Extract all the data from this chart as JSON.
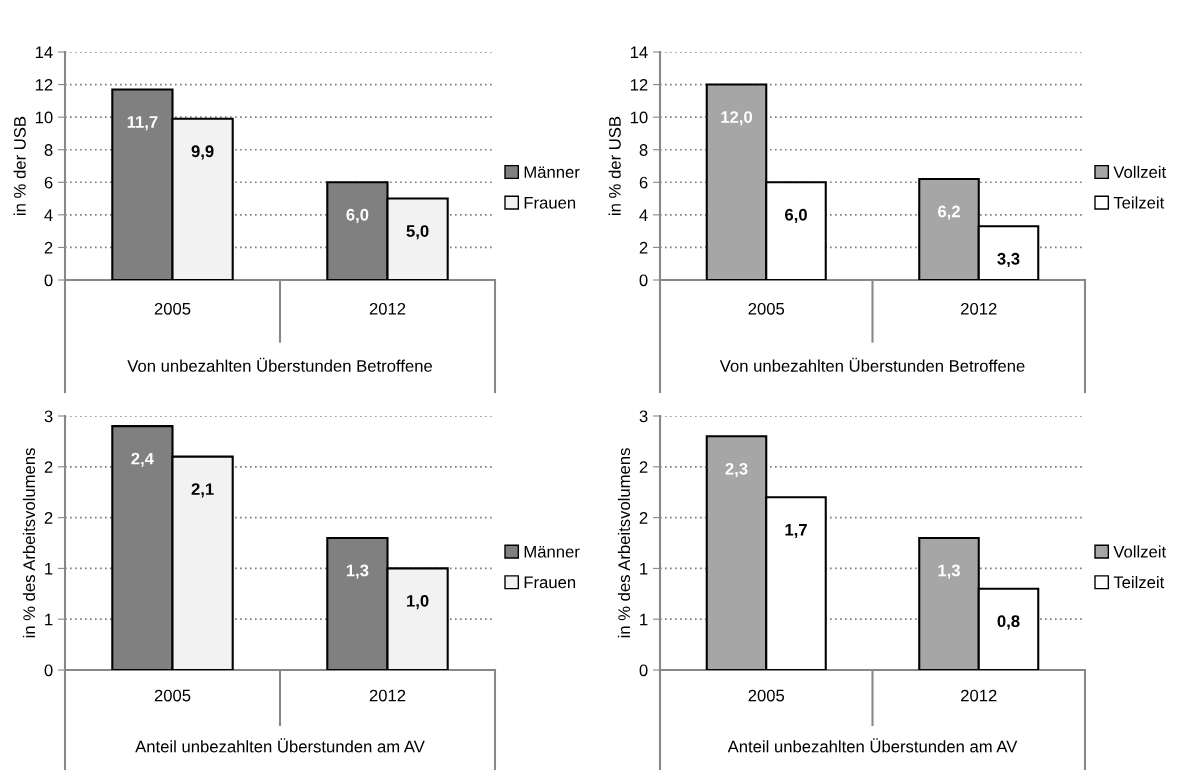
{
  "chart_data": [
    {
      "type": "bar",
      "categories": [
        "2005",
        "2012"
      ],
      "xlabel": "Von unbezahlten Überstunden Betroffene",
      "ylabel": "in % der USB",
      "ylim": [
        0,
        14
      ],
      "yticks": [
        0,
        2,
        4,
        6,
        8,
        10,
        12,
        14
      ],
      "grid": "y",
      "legend": "right",
      "series": [
        {
          "name": "Männer",
          "color": "#808080",
          "values": [
            11.7,
            6.0
          ],
          "value_labels": [
            "11,7",
            "6,0"
          ]
        },
        {
          "name": "Frauen",
          "color": "#f2f2f2",
          "values": [
            9.9,
            5.0
          ],
          "value_labels": [
            "9,9",
            "5,0"
          ]
        }
      ]
    },
    {
      "type": "bar",
      "categories": [
        "2005",
        "2012"
      ],
      "xlabel": "Von unbezahlten Überstunden Betroffene",
      "ylabel": "in % der USB",
      "ylim": [
        0,
        14
      ],
      "yticks": [
        0,
        2,
        4,
        6,
        8,
        10,
        12,
        14
      ],
      "grid": "y",
      "legend": "right",
      "series": [
        {
          "name": "Vollzeit",
          "color": "#a6a6a6",
          "values": [
            12.0,
            6.2
          ],
          "value_labels": [
            "12,0",
            "6,2"
          ]
        },
        {
          "name": "Teilzeit",
          "color": "#ffffff",
          "values": [
            6.0,
            3.3
          ],
          "value_labels": [
            "6,0",
            "3,3"
          ]
        }
      ]
    },
    {
      "type": "bar",
      "categories": [
        "2005",
        "2012"
      ],
      "xlabel": "Anteil unbezahlten Überstunden am AV",
      "ylabel": "in % des Arbeitsvolumens",
      "ylim": [
        0,
        2.5
      ],
      "yticks": [
        {
          "value": 0,
          "label": "0"
        },
        {
          "value": 0.5,
          "label": "1"
        },
        {
          "value": 1,
          "label": "1"
        },
        {
          "value": 1.5,
          "label": "2"
        },
        {
          "value": 2,
          "label": "2"
        },
        {
          "value": 2.5,
          "label": "3"
        }
      ],
      "grid": "y",
      "legend": "right",
      "series": [
        {
          "name": "Männer",
          "color": "#808080",
          "values": [
            2.4,
            1.3
          ],
          "value_labels": [
            "2,4",
            "1,3"
          ]
        },
        {
          "name": "Frauen",
          "color": "#f2f2f2",
          "values": [
            2.1,
            1.0
          ],
          "value_labels": [
            "2,1",
            "1,0"
          ]
        }
      ]
    },
    {
      "type": "bar",
      "categories": [
        "2005",
        "2012"
      ],
      "xlabel": "Anteil unbezahlten Überstunden am AV",
      "ylabel": "in % des Arbeitsvolumens",
      "ylim": [
        0,
        2.5
      ],
      "yticks": [
        {
          "value": 0,
          "label": "0"
        },
        {
          "value": 0.5,
          "label": "1"
        },
        {
          "value": 1,
          "label": "1"
        },
        {
          "value": 1.5,
          "label": "2"
        },
        {
          "value": 2,
          "label": "2"
        },
        {
          "value": 2.5,
          "label": "3"
        }
      ],
      "grid": "y",
      "legend": "right",
      "series": [
        {
          "name": "Vollzeit",
          "color": "#a6a6a6",
          "values": [
            2.3,
            1.3
          ],
          "value_labels": [
            "2,3",
            "1,3"
          ]
        },
        {
          "name": "Teilzeit",
          "color": "#ffffff",
          "values": [
            1.7,
            0.8
          ],
          "value_labels": [
            "1,7",
            "0,8"
          ]
        }
      ]
    }
  ]
}
